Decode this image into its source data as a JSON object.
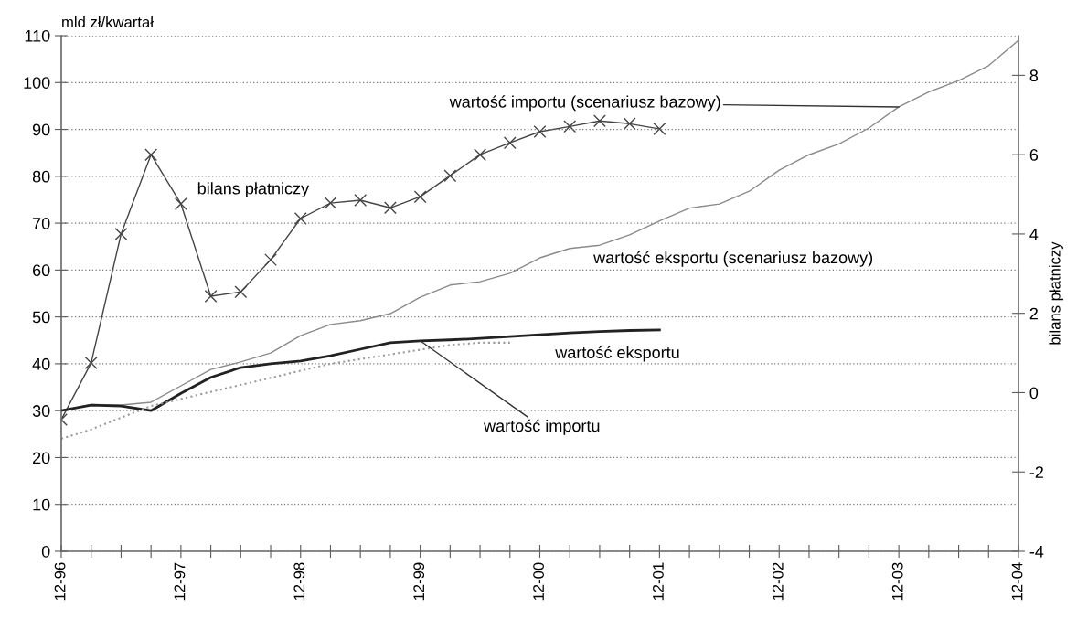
{
  "chart_data": {
    "type": "line",
    "ylabel": "mld zł/kwartał",
    "y2label": "bilans płatniczy",
    "categories": [
      "12-96",
      null,
      null,
      null,
      "12-97",
      null,
      null,
      null,
      "12-98",
      null,
      null,
      null,
      "12-99",
      null,
      null,
      null,
      "12-00",
      null,
      null,
      null,
      "12-01",
      null,
      null,
      null,
      "12-02",
      null,
      null,
      null,
      "12-03",
      null,
      null,
      null,
      "12-04"
    ],
    "series": [
      {
        "color": "#8a8a8a",
        "values": [
          30,
          31.3,
          31.2,
          31.8,
          35.3,
          38.8,
          40.4,
          42.3,
          46,
          48.4,
          49.2,
          50.7,
          54.2,
          56.8,
          57.5,
          59.3,
          62.6,
          64.6,
          65.3,
          67.5,
          70.5,
          73.2,
          74.1,
          76.8,
          81.3,
          84.6,
          86.9,
          90.3,
          94.8,
          98,
          100.4,
          103.6,
          109
        ],
        "line_style": "solid"
      },
      {
        "color": "#222222",
        "values": [
          30,
          31.2,
          31,
          30,
          33.7,
          37.1,
          39.2,
          40,
          40.6,
          41.7,
          43.1,
          44.5,
          44.9,
          45.1,
          45.4,
          45.8,
          46.2,
          46.6,
          46.9,
          47.1,
          47.2,
          null,
          null,
          null,
          null,
          null,
          null,
          null,
          null,
          null,
          null,
          null,
          null
        ],
        "line_style": "solid"
      },
      {
        "color": "#9a9a9a",
        "values": [
          24,
          26,
          28.5,
          31,
          32.5,
          34,
          35.5,
          37,
          38.5,
          40,
          41,
          42,
          43,
          44,
          44.5,
          44.5,
          null,
          null,
          null,
          null,
          null,
          null,
          null,
          null,
          null,
          null,
          null,
          null,
          null,
          null,
          null,
          null,
          null
        ],
        "line_style": "dotted"
      },
      {
        "color": "#444444",
        "axis": "y2",
        "marker": "cross",
        "values": [
          -0.68,
          0.75,
          4.0,
          6.0,
          4.76,
          2.43,
          2.54,
          3.35,
          4.39,
          4.78,
          4.85,
          4.66,
          4.94,
          5.47,
          6.0,
          6.3,
          6.58,
          6.71,
          6.85,
          6.78,
          6.65,
          null,
          null,
          null,
          null,
          null,
          null,
          null,
          null,
          null,
          null,
          null,
          null
        ],
        "line_style": "solid"
      }
    ],
    "ylim": [
      0,
      110
    ],
    "yticks": [
      0,
      10,
      20,
      30,
      40,
      50,
      60,
      70,
      80,
      90,
      100,
      110
    ],
    "y2lim": [
      -4,
      9
    ],
    "y2ticks": [
      -4,
      -2,
      0,
      2,
      4,
      6,
      8
    ],
    "grid": "y",
    "legend": false,
    "annotations": [
      "bilans płatniczy",
      {
        "text": "wartość importu (scenariusz bazowy)",
        "x": "12-03",
        "y": 94.8
      },
      "wartość eksportu (scenariusz bazowy)",
      "wartość eksportu",
      {
        "text": "wartość importu",
        "x": "12-99",
        "y": 44.9
      }
    ]
  }
}
